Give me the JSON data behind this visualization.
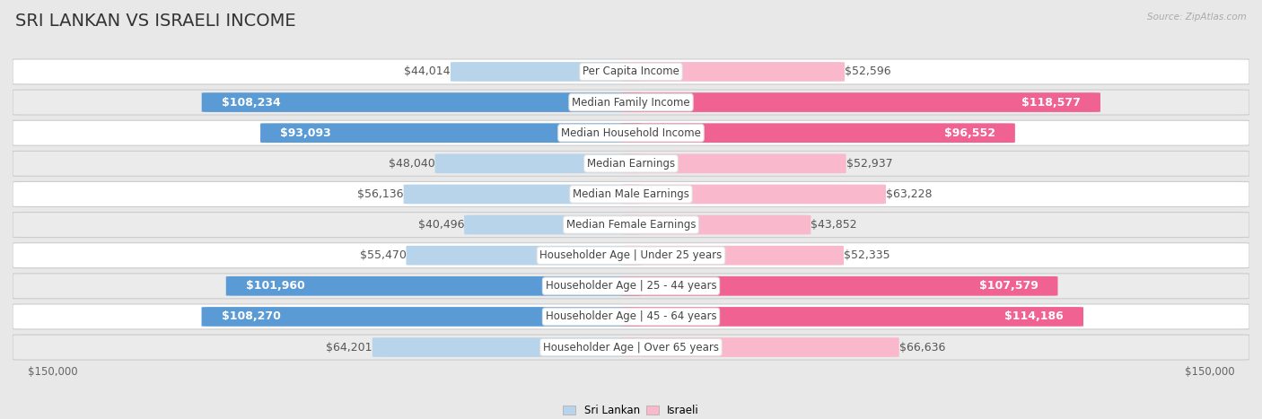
{
  "title": "SRI LANKAN VS ISRAELI INCOME",
  "source": "Source: ZipAtlas.com",
  "categories": [
    "Per Capita Income",
    "Median Family Income",
    "Median Household Income",
    "Median Earnings",
    "Median Male Earnings",
    "Median Female Earnings",
    "Householder Age | Under 25 years",
    "Householder Age | 25 - 44 years",
    "Householder Age | 45 - 64 years",
    "Householder Age | Over 65 years"
  ],
  "sri_lankan": [
    44014,
    108234,
    93093,
    48040,
    56136,
    40496,
    55470,
    101960,
    108270,
    64201
  ],
  "israeli": [
    52596,
    118577,
    96552,
    52937,
    63228,
    43852,
    52335,
    107579,
    114186,
    66636
  ],
  "max_val": 150000,
  "sl_color_light": "#b8d4ea",
  "sl_color_dark": "#5b9bd5",
  "il_color_light": "#f9b8cc",
  "il_color_dark": "#f06292",
  "bg_color": "#e8e8e8",
  "row_bg_white": "#ffffff",
  "row_bg_gray": "#ebebeb",
  "title_fontsize": 14,
  "label_fontsize": 9,
  "category_fontsize": 8.5,
  "axis_fontsize": 8.5,
  "threshold": 75000,
  "sri_lankan_legend": "Sri Lankan",
  "israeli_legend": "Israeli"
}
